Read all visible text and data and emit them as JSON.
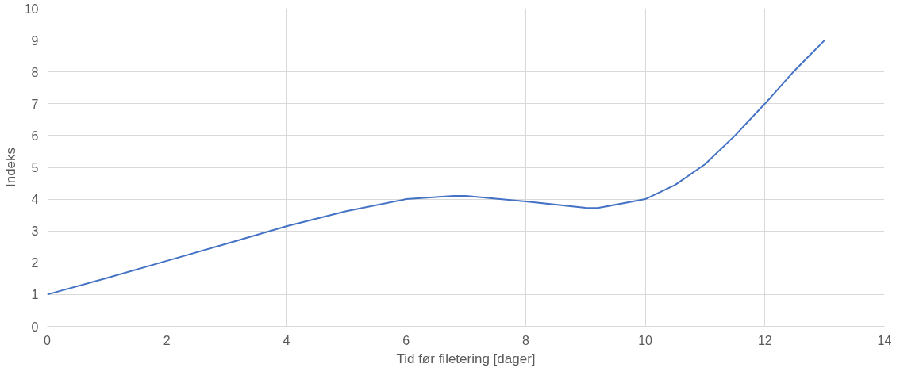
{
  "chart_data": {
    "type": "line",
    "xlabel": "Tid før filetering [dager]",
    "ylabel": "Indeks",
    "x": [
      0,
      1,
      2,
      3,
      4,
      5,
      6,
      6.8,
      7,
      8,
      9,
      9.2,
      10,
      10.5,
      11,
      11.5,
      12,
      12.5,
      13
    ],
    "series": [
      {
        "color": "#4472c4",
        "values": [
          1,
          1.52,
          2.06,
          2.6,
          3.15,
          3.62,
          4.0,
          4.1,
          4.1,
          3.93,
          3.73,
          3.72,
          4.0,
          4.45,
          5.1,
          6.0,
          7.0,
          8.05,
          9.0
        ]
      }
    ],
    "xlim": [
      0,
      14
    ],
    "xticks": [
      0,
      2,
      4,
      6,
      8,
      10,
      12,
      14
    ],
    "ylim": [
      0,
      10
    ],
    "yticks": [
      0,
      1,
      2,
      3,
      4,
      5,
      6,
      7,
      8,
      9,
      10
    ],
    "grid": true,
    "marker": "none",
    "line_style": "solid"
  }
}
